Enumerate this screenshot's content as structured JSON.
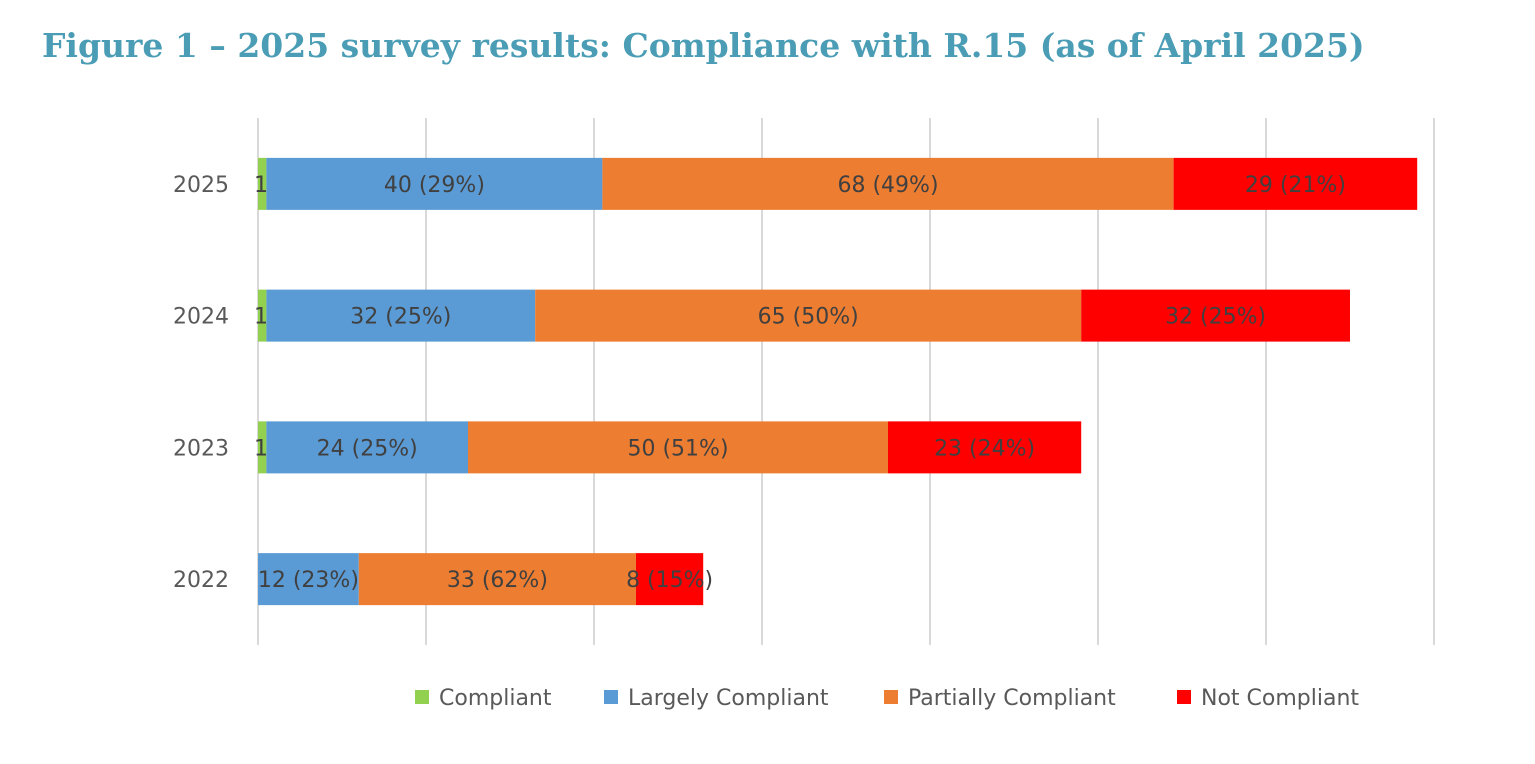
{
  "title": "Figure 1 – 2025 survey results: Compliance with R.15 (as of April 2025)",
  "chart_data": {
    "type": "bar",
    "orientation": "horizontal",
    "stacked": true,
    "title": "Figure 1 – 2025 survey results: Compliance with R.15 (as of April 2025)",
    "categories": [
      "2025",
      "2024",
      "2023",
      "2022"
    ],
    "series": [
      {
        "name": "Compliant",
        "color": "#92d050",
        "values": [
          1,
          1,
          1,
          0
        ],
        "labels": [
          "1",
          "1",
          "1",
          ""
        ]
      },
      {
        "name": "Largely Compliant",
        "color": "#5b9bd5",
        "values": [
          40,
          32,
          24,
          12
        ],
        "labels": [
          "40 (29%)",
          "32 (25%)",
          "24 (25%)",
          "12 (23%)"
        ]
      },
      {
        "name": "Partially Compliant",
        "color": "#ed7d31",
        "values": [
          68,
          65,
          50,
          33
        ],
        "labels": [
          "68 (49%)",
          "65 (50%)",
          "50 (51%)",
          "33 (62%)"
        ]
      },
      {
        "name": "Not Compliant",
        "color": "#ff0000",
        "values": [
          29,
          32,
          23,
          8
        ],
        "labels": [
          "29 (21%)",
          "32 (25%)",
          "23 (24%)",
          "8 (15%)"
        ]
      }
    ],
    "xlim": [
      0,
      140
    ],
    "x_grid_step": 20,
    "x_tick_labels_shown": false,
    "grid": true,
    "legend": "bottom"
  }
}
